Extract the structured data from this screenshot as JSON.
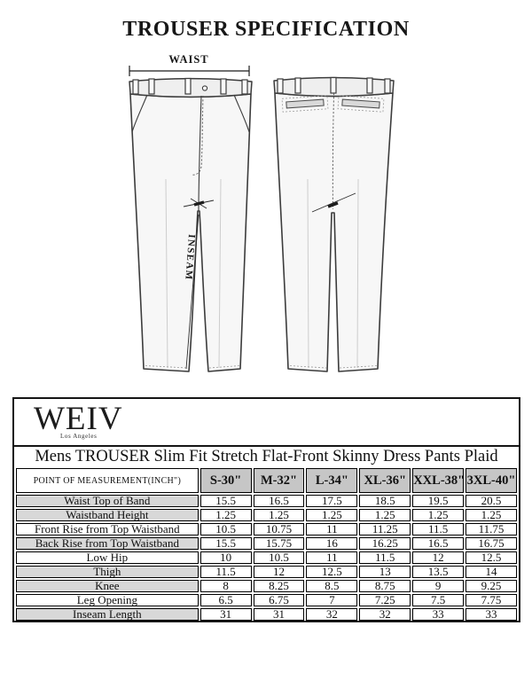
{
  "page": {
    "title": "TROUSER SPECIFICATION"
  },
  "diagram": {
    "waist_label": "WAIST",
    "inseam_label": "INSEAM"
  },
  "brand": {
    "logo": "WEIV",
    "sub": "Los Angeles"
  },
  "product_title": "Mens TROUSER Slim Fit Stretch Flat-Front Skinny Dress Pants Plaid",
  "spec_table": {
    "header": {
      "label": "POINT OF MEASUREMENT(INCH\")",
      "sizes": [
        "S-30\"",
        "M-32\"",
        "L-34\"",
        "XL-36\"",
        "XXL-38\"",
        "3XL-40\""
      ]
    },
    "rows": [
      {
        "label": "Waist Top of Band",
        "values": [
          "15.5",
          "16.5",
          "17.5",
          "18.5",
          "19.5",
          "20.5"
        ],
        "shaded": true
      },
      {
        "label": "Waistband Height",
        "values": [
          "1.25",
          "1.25",
          "1.25",
          "1.25",
          "1.25",
          "1.25"
        ],
        "shaded": true
      },
      {
        "label": "Front Rise from Top Waistband",
        "values": [
          "10.5",
          "10.75",
          "11",
          "11.25",
          "11.5",
          "11.75"
        ],
        "shaded": false
      },
      {
        "label": "Back Rise from Top Waistband",
        "values": [
          "15.5",
          "15.75",
          "16",
          "16.25",
          "16.5",
          "16.75"
        ],
        "shaded": true
      },
      {
        "label": "Low Hip",
        "values": [
          "10",
          "10.5",
          "11",
          "11.5",
          "12",
          "12.5"
        ],
        "shaded": false
      },
      {
        "label": "Thigh",
        "values": [
          "11.5",
          "12",
          "12.5",
          "13",
          "13.5",
          "14"
        ],
        "shaded": true
      },
      {
        "label": "Knee",
        "values": [
          "8",
          "8.25",
          "8.5",
          "8.75",
          "9",
          "9.25"
        ],
        "shaded": true
      },
      {
        "label": "Leg Opening",
        "values": [
          "6.5",
          "6.75",
          "7",
          "7.25",
          "7.5",
          "7.75"
        ],
        "shaded": false
      },
      {
        "label": "Inseam Length",
        "values": [
          "31",
          "31",
          "32",
          "32",
          "33",
          "33"
        ],
        "shaded": true
      }
    ]
  },
  "colors": {
    "border": "#151515",
    "shade_header": "#c6c6c6",
    "shade_row": "#d8d8d8",
    "drawing_fill": "#f7f7f7",
    "drawing_line": "#3c3c3c"
  }
}
